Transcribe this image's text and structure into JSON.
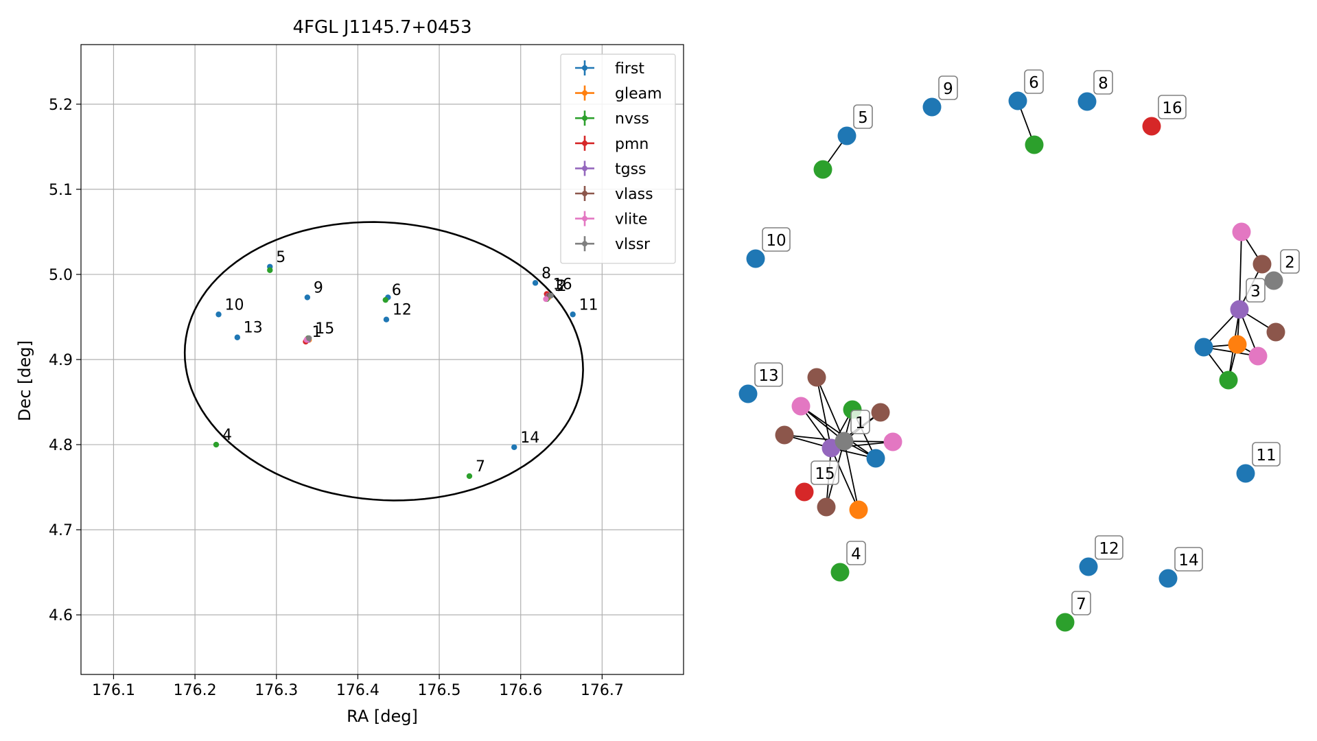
{
  "chart_data": [
    {
      "type": "scatter",
      "title": "4FGL J1145.7+0453",
      "xlabel": "RA [deg]",
      "ylabel": "Dec [deg]",
      "xlim": [
        176.06,
        176.8
      ],
      "ylim": [
        4.53,
        5.27
      ],
      "xticks": [
        176.1,
        176.2,
        176.3,
        176.4,
        176.5,
        176.6,
        176.7
      ],
      "xtick_labels": [
        "176.1",
        "176.2",
        "176.3",
        "176.4",
        "176.5",
        "176.6",
        "176.7"
      ],
      "yticks": [
        4.6,
        4.7,
        4.8,
        4.9,
        5.0,
        5.1,
        5.2
      ],
      "ytick_labels": [
        "4.6",
        "4.7",
        "4.8",
        "4.9",
        "5.0",
        "5.1",
        "5.2"
      ],
      "grid": true,
      "legend_position": "top-right",
      "ellipse": {
        "center": [
          176.432,
          4.898
        ],
        "ra_half_width": 0.245,
        "dec_half_height": 0.163,
        "color": "#000000"
      },
      "series": [
        {
          "name": "first",
          "color": "#1f77b4",
          "points": [
            {
              "ra": 176.292,
              "dec": 5.009,
              "label": "5"
            },
            {
              "ra": 176.338,
              "dec": 4.973,
              "label": "9"
            },
            {
              "ra": 176.229,
              "dec": 4.953,
              "label": "10"
            },
            {
              "ra": 176.252,
              "dec": 4.926,
              "label": "13"
            },
            {
              "ra": 176.437,
              "dec": 4.973,
              "label": ""
            },
            {
              "ra": 176.435,
              "dec": 4.947,
              "label": "12"
            },
            {
              "ra": 176.618,
              "dec": 4.99,
              "label": "8"
            },
            {
              "ra": 176.664,
              "dec": 4.953,
              "label": "11"
            },
            {
              "ra": 176.592,
              "dec": 4.797,
              "label": "14"
            },
            {
              "ra": 176.338,
              "dec": 4.924,
              "label": ""
            },
            {
              "ra": 176.633,
              "dec": 4.974,
              "label": ""
            }
          ]
        },
        {
          "name": "gleam",
          "color": "#ff7f0e",
          "points": [
            {
              "ra": 176.34,
              "dec": 4.923,
              "label": ""
            },
            {
              "ra": 176.634,
              "dec": 4.973,
              "label": ""
            }
          ]
        },
        {
          "name": "nvss",
          "color": "#2ca02c",
          "points": [
            {
              "ra": 176.292,
              "dec": 5.005,
              "label": ""
            },
            {
              "ra": 176.434,
              "dec": 4.97,
              "label": "6"
            },
            {
              "ra": 176.226,
              "dec": 4.8,
              "label": "4"
            },
            {
              "ra": 176.537,
              "dec": 4.763,
              "label": "7"
            },
            {
              "ra": 176.339,
              "dec": 4.925,
              "label": ""
            },
            {
              "ra": 176.632,
              "dec": 4.971,
              "label": ""
            }
          ]
        },
        {
          "name": "pmn",
          "color": "#d62728",
          "points": [
            {
              "ra": 176.336,
              "dec": 4.921,
              "label": "1"
            },
            {
              "ra": 176.632,
              "dec": 4.977,
              "label": "16"
            }
          ]
        },
        {
          "name": "tgss",
          "color": "#9467bd",
          "points": [
            {
              "ra": 176.339,
              "dec": 4.923,
              "label": ""
            },
            {
              "ra": 176.634,
              "dec": 4.975,
              "label": "3"
            }
          ]
        },
        {
          "name": "vlass",
          "color": "#8c564b",
          "points": [
            {
              "ra": 176.338,
              "dec": 4.924,
              "label": ""
            },
            {
              "ra": 176.635,
              "dec": 4.975,
              "label": ""
            }
          ]
        },
        {
          "name": "vlite",
          "color": "#e377c2",
          "points": [
            {
              "ra": 176.337,
              "dec": 4.923,
              "label": ""
            },
            {
              "ra": 176.631,
              "dec": 4.971,
              "label": ""
            }
          ]
        },
        {
          "name": "vlssr",
          "color": "#7f7f7f",
          "points": [
            {
              "ra": 176.34,
              "dec": 4.925,
              "label": "15"
            },
            {
              "ra": 176.637,
              "dec": 4.975,
              "label": "2"
            }
          ]
        }
      ]
    },
    {
      "type": "graph",
      "nodes": [
        {
          "id": "f9",
          "color": "#1f77b4",
          "label": "9"
        },
        {
          "id": "f6",
          "color": "#1f77b4",
          "label": "6"
        },
        {
          "id": "n6",
          "color": "#2ca02c",
          "label": ""
        },
        {
          "id": "f8",
          "color": "#1f77b4",
          "label": "8"
        },
        {
          "id": "p16",
          "color": "#d62728",
          "label": "16"
        },
        {
          "id": "f5",
          "color": "#1f77b4",
          "label": "5"
        },
        {
          "id": "n5",
          "color": "#2ca02c",
          "label": ""
        },
        {
          "id": "f10",
          "color": "#1f77b4",
          "label": "10"
        },
        {
          "id": "f13",
          "color": "#1f77b4",
          "label": "13"
        },
        {
          "id": "v2",
          "color": "#7f7f7f",
          "label": "2"
        },
        {
          "id": "t3",
          "color": "#9467bd",
          "label": "3"
        },
        {
          "id": "vl3a",
          "color": "#e377c2",
          "label": ""
        },
        {
          "id": "vs3a",
          "color": "#8c564b",
          "label": ""
        },
        {
          "id": "vs3b",
          "color": "#8c564b",
          "label": ""
        },
        {
          "id": "f3",
          "color": "#1f77b4",
          "label": ""
        },
        {
          "id": "g3",
          "color": "#ff7f0e",
          "label": ""
        },
        {
          "id": "vl3b",
          "color": "#e377c2",
          "label": ""
        },
        {
          "id": "n3",
          "color": "#2ca02c",
          "label": ""
        },
        {
          "id": "t1",
          "color": "#9467bd",
          "label": ""
        },
        {
          "id": "vr1",
          "color": "#7f7f7f",
          "label": "1"
        },
        {
          "id": "vs1a",
          "color": "#8c564b",
          "label": ""
        },
        {
          "id": "vl1a",
          "color": "#e377c2",
          "label": ""
        },
        {
          "id": "n1",
          "color": "#2ca02c",
          "label": ""
        },
        {
          "id": "vs1b",
          "color": "#8c564b",
          "label": ""
        },
        {
          "id": "vs1c",
          "color": "#8c564b",
          "label": ""
        },
        {
          "id": "vl1b",
          "color": "#e377c2",
          "label": ""
        },
        {
          "id": "f1",
          "color": "#1f77b4",
          "label": ""
        },
        {
          "id": "p15",
          "color": "#d62728",
          "label": "15"
        },
        {
          "id": "vs1d",
          "color": "#8c564b",
          "label": ""
        },
        {
          "id": "g1",
          "color": "#ff7f0e",
          "label": ""
        },
        {
          "id": "f11",
          "color": "#1f77b4",
          "label": "11"
        },
        {
          "id": "n4",
          "color": "#2ca02c",
          "label": "4"
        },
        {
          "id": "f12",
          "color": "#1f77b4",
          "label": "12"
        },
        {
          "id": "f14",
          "color": "#1f77b4",
          "label": "14"
        },
        {
          "id": "n7",
          "color": "#2ca02c",
          "label": "7"
        }
      ],
      "edges": [
        [
          "f6",
          "n6"
        ],
        [
          "f5",
          "n5"
        ],
        [
          "vl3a",
          "t3"
        ],
        [
          "vl3a",
          "vs3a"
        ],
        [
          "vs3a",
          "t3"
        ],
        [
          "t3",
          "vs3b"
        ],
        [
          "t3",
          "f3"
        ],
        [
          "t3",
          "g3"
        ],
        [
          "t3",
          "vl3b"
        ],
        [
          "t3",
          "n3"
        ],
        [
          "f3",
          "g3"
        ],
        [
          "f3",
          "n3"
        ],
        [
          "g3",
          "vl3b"
        ],
        [
          "g3",
          "n3"
        ],
        [
          "f3",
          "vl3b"
        ],
        [
          "vs1a",
          "vr1"
        ],
        [
          "vs1a",
          "t1"
        ],
        [
          "vl1a",
          "t1"
        ],
        [
          "vl1a",
          "vr1"
        ],
        [
          "vl1a",
          "f1"
        ],
        [
          "n1",
          "t1"
        ],
        [
          "n1",
          "vr1"
        ],
        [
          "vs1b",
          "t1"
        ],
        [
          "vs1b",
          "vr1"
        ],
        [
          "vs1c",
          "t1"
        ],
        [
          "vs1c",
          "vr1"
        ],
        [
          "vl1b",
          "t1"
        ],
        [
          "vl1b",
          "vr1"
        ],
        [
          "f1",
          "t1"
        ],
        [
          "f1",
          "vr1"
        ],
        [
          "vs1d",
          "t1"
        ],
        [
          "vs1d",
          "vr1"
        ],
        [
          "g1",
          "t1"
        ],
        [
          "g1",
          "vr1"
        ],
        [
          "t1",
          "vr1"
        ],
        [
          "n1",
          "f1"
        ]
      ]
    }
  ]
}
